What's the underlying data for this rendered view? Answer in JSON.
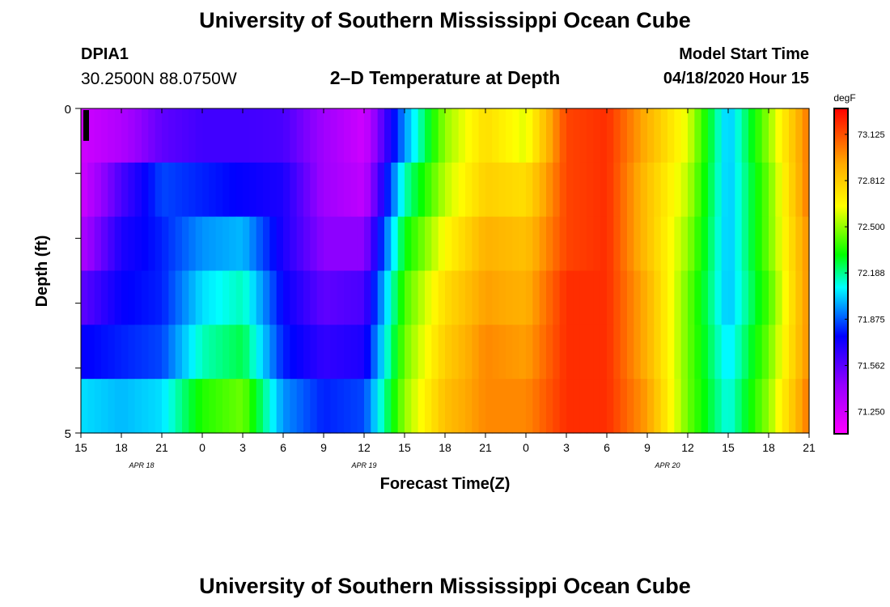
{
  "page": {
    "title": "University of Southern Mississippi Ocean Cube",
    "bottom_title": "University of Southern Mississippi Ocean Cube",
    "station_id": "DPIA1",
    "coordinates": "30.2500N 88.0750W",
    "plot_title": "2–D Temperature at Depth",
    "model_start_label": "Model Start Time",
    "model_start_value": "04/18/2020 Hour 15"
  },
  "chart_data": {
    "type": "heatmap",
    "title": "2–D Temperature at Depth",
    "xlabel": "Forecast Time(Z)",
    "ylabel": "Depth (ft)",
    "ylim": [
      0,
      5
    ],
    "y_ticks": [
      "0",
      "5"
    ],
    "x_tick_labels": [
      "15",
      "18",
      "21",
      "0",
      "3",
      "6",
      "9",
      "12",
      "15",
      "18",
      "21",
      "0",
      "3",
      "6",
      "9",
      "12",
      "15",
      "18",
      "21"
    ],
    "date_labels": [
      {
        "label": "APR  18",
        "tick_index": 1.5
      },
      {
        "label": "APR  19",
        "tick_index": 7
      },
      {
        "label": "APR  20",
        "tick_index": 14.5
      }
    ],
    "x_start_hours": 0,
    "x_end_hours": 54,
    "colorbar": {
      "unit": "degF",
      "min": 71.1,
      "max": 73.3,
      "tick_labels": [
        "73.125",
        "72.812",
        "72.500",
        "72.188",
        "71.875",
        "71.562",
        "71.250"
      ],
      "tick_values": [
        73.125,
        72.812,
        72.5,
        72.188,
        71.875,
        71.562,
        71.25
      ]
    },
    "depth_rows": [
      "0–0.5",
      "0.5–1.5",
      "1.5–2.5",
      "2.5–3.5",
      "3.5–4.5",
      "4.5–5"
    ],
    "column_hours": [
      0,
      3,
      6,
      9,
      12,
      15,
      18,
      21,
      24,
      27,
      30,
      33,
      36,
      39,
      42,
      45,
      48,
      51,
      54
    ],
    "values": [
      [
        71.25,
        71.35,
        71.55,
        71.62,
        71.62,
        71.6,
        71.4,
        71.25,
        71.95,
        72.5,
        72.75,
        72.6,
        73.15,
        73.2,
        72.9,
        72.6,
        72.0,
        72.5,
        73.05
      ],
      [
        71.25,
        71.6,
        71.85,
        71.8,
        71.75,
        71.7,
        71.4,
        71.3,
        72.15,
        72.55,
        72.8,
        72.75,
        73.15,
        73.2,
        72.85,
        72.55,
        72.0,
        72.45,
        73.05
      ],
      [
        71.35,
        71.7,
        71.8,
        71.95,
        72.0,
        71.7,
        71.45,
        71.45,
        72.3,
        72.65,
        72.9,
        72.85,
        73.15,
        73.2,
        72.85,
        72.5,
        72.0,
        72.45,
        73.0
      ],
      [
        71.55,
        71.75,
        71.8,
        72.05,
        72.15,
        71.75,
        71.55,
        71.6,
        72.4,
        72.75,
        72.95,
        72.9,
        73.2,
        73.2,
        72.9,
        72.45,
        72.0,
        72.4,
        73.0
      ],
      [
        71.75,
        71.8,
        71.85,
        72.15,
        72.25,
        71.8,
        71.65,
        71.7,
        72.45,
        72.8,
        73.0,
        72.95,
        73.2,
        73.2,
        72.9,
        72.45,
        72.05,
        72.45,
        73.0
      ],
      [
        72.05,
        72.0,
        72.05,
        72.35,
        72.45,
        71.95,
        71.8,
        71.85,
        72.5,
        72.85,
        73.0,
        73.0,
        73.2,
        73.2,
        72.95,
        72.45,
        72.1,
        72.5,
        73.05
      ]
    ]
  }
}
